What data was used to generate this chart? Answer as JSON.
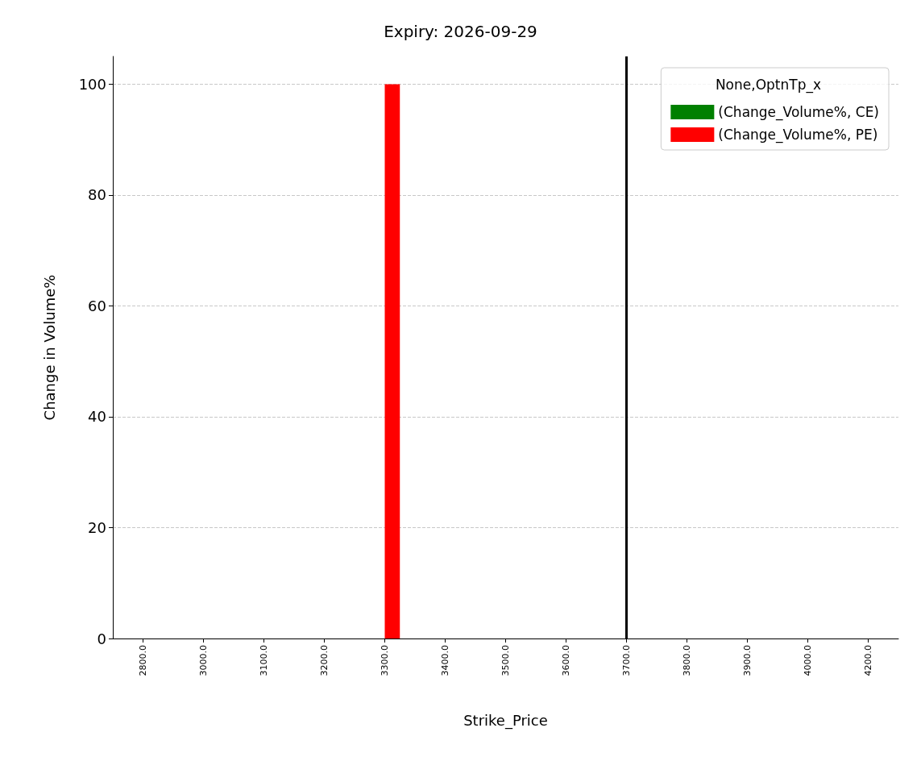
{
  "chart_data": {
    "type": "bar",
    "title": "Expiry: 2026-09-29",
    "xlabel": "Strike_Price",
    "ylabel": "Change in Volume%",
    "legend_title": "None,OptnTp_x",
    "categories": [
      "2800.0",
      "3000.0",
      "3100.0",
      "3200.0",
      "3300.0",
      "3400.0",
      "3500.0",
      "3600.0",
      "3700.0",
      "3800.0",
      "3900.0",
      "4000.0",
      "4200.0"
    ],
    "series": [
      {
        "name": "(Change_Volume%, CE)",
        "color": "#008000",
        "values": [
          0,
          0,
          0,
          0,
          0,
          0,
          0,
          0,
          0,
          0,
          0,
          0,
          0
        ]
      },
      {
        "name": "(Change_Volume%, PE)",
        "color": "#ff0000",
        "values": [
          0,
          0,
          0,
          0,
          100,
          0,
          0,
          0,
          0,
          0,
          0,
          0,
          0
        ]
      }
    ],
    "ylim": [
      0,
      105
    ],
    "yticks": [
      0,
      20,
      40,
      60,
      80,
      100
    ],
    "grid": "y",
    "legend": "top right",
    "ref_lines": [
      {
        "axis": "x",
        "value": "3700.0",
        "color": "#000000",
        "line_style": "solid"
      }
    ]
  }
}
